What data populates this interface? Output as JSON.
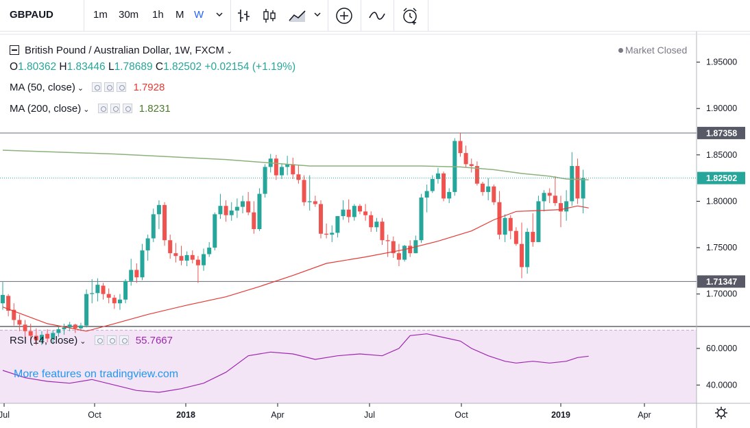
{
  "toolbar": {
    "symbol": "GBPAUD",
    "intervals": [
      "1m",
      "30m",
      "1h",
      "M",
      "W"
    ],
    "active_interval": "W",
    "colors": {
      "active": "#2962ff"
    }
  },
  "legend": {
    "title": "British Pound / Australian Dollar, 1W, FXCM",
    "market_status": "Market Closed",
    "ohlc": {
      "o_label": "O",
      "o": "1.80362",
      "h_label": "H",
      "h": "1.83446",
      "l_label": "L",
      "l": "1.78689",
      "c_label": "C",
      "c": "1.82502",
      "change": "+0.02154 (+1.19%)"
    },
    "ma50": {
      "label": "MA (50, close)",
      "value": "1.7928"
    },
    "ma200": {
      "label": "MA (200, close)",
      "value": "1.8231"
    },
    "rsi": {
      "label": "RSI (14, close)",
      "value": "55.7667"
    }
  },
  "watermark": "More features on tradingview.com",
  "colors": {
    "up": "#26a69a",
    "down": "#ef5350",
    "ma50": "#e53935",
    "ma200": "#8bb07b",
    "rsi": "#9c27b0",
    "rsi_band": "#f3e5f5"
  },
  "chart_data": [
    {
      "type": "candlestick",
      "title": "British Pound / Australian Dollar, 1W, FXCM",
      "ylim": [
        1.665,
        1.98
      ],
      "y_ticks": [
        "1.95000",
        "1.90000",
        "1.85000",
        "1.80000",
        "1.75000",
        "1.70000"
      ],
      "x_tick_labels": [
        "Jul",
        "Oct",
        "2018",
        "Apr",
        "Jul",
        "Oct",
        "2019",
        "Apr"
      ],
      "price_labels": [
        {
          "label": "1.87358",
          "value": 1.87358,
          "kind": "level"
        },
        {
          "label": "1.82502",
          "value": 1.82502,
          "kind": "last"
        },
        {
          "label": "1.71347",
          "value": 1.71347,
          "kind": "level"
        }
      ],
      "horizontal_levels": [
        1.87358,
        1.71347
      ],
      "candles": [
        {
          "o": 1.69,
          "h": 1.713,
          "l": 1.683,
          "c": 1.699
        },
        {
          "o": 1.698,
          "h": 1.7,
          "l": 1.676,
          "c": 1.682
        },
        {
          "o": 1.683,
          "h": 1.69,
          "l": 1.666,
          "c": 1.672
        },
        {
          "o": 1.672,
          "h": 1.678,
          "l": 1.66,
          "c": 1.667
        },
        {
          "o": 1.667,
          "h": 1.672,
          "l": 1.652,
          "c": 1.66
        },
        {
          "o": 1.66,
          "h": 1.668,
          "l": 1.65,
          "c": 1.655
        },
        {
          "o": 1.655,
          "h": 1.663,
          "l": 1.645,
          "c": 1.65
        },
        {
          "o": 1.65,
          "h": 1.66,
          "l": 1.645,
          "c": 1.656
        },
        {
          "o": 1.657,
          "h": 1.662,
          "l": 1.648,
          "c": 1.652
        },
        {
          "o": 1.652,
          "h": 1.661,
          "l": 1.646,
          "c": 1.658
        },
        {
          "o": 1.658,
          "h": 1.666,
          "l": 1.654,
          "c": 1.662
        },
        {
          "o": 1.662,
          "h": 1.668,
          "l": 1.656,
          "c": 1.664
        },
        {
          "o": 1.664,
          "h": 1.67,
          "l": 1.66,
          "c": 1.667
        },
        {
          "o": 1.667,
          "h": 1.668,
          "l": 1.658,
          "c": 1.663
        },
        {
          "o": 1.663,
          "h": 1.669,
          "l": 1.66,
          "c": 1.666
        },
        {
          "o": 1.666,
          "h": 1.705,
          "l": 1.664,
          "c": 1.7
        },
        {
          "o": 1.7,
          "h": 1.716,
          "l": 1.69,
          "c": 1.701
        },
        {
          "o": 1.701,
          "h": 1.717,
          "l": 1.692,
          "c": 1.71
        },
        {
          "o": 1.709,
          "h": 1.712,
          "l": 1.694,
          "c": 1.7
        },
        {
          "o": 1.7,
          "h": 1.706,
          "l": 1.69,
          "c": 1.696
        },
        {
          "o": 1.696,
          "h": 1.699,
          "l": 1.684,
          "c": 1.69
        },
        {
          "o": 1.69,
          "h": 1.7,
          "l": 1.683,
          "c": 1.694
        },
        {
          "o": 1.694,
          "h": 1.716,
          "l": 1.69,
          "c": 1.714
        },
        {
          "o": 1.714,
          "h": 1.738,
          "l": 1.709,
          "c": 1.726
        },
        {
          "o": 1.726,
          "h": 1.733,
          "l": 1.712,
          "c": 1.718
        },
        {
          "o": 1.718,
          "h": 1.754,
          "l": 1.715,
          "c": 1.747
        },
        {
          "o": 1.747,
          "h": 1.764,
          "l": 1.736,
          "c": 1.76
        },
        {
          "o": 1.76,
          "h": 1.792,
          "l": 1.756,
          "c": 1.786
        },
        {
          "o": 1.786,
          "h": 1.801,
          "l": 1.77,
          "c": 1.796
        },
        {
          "o": 1.796,
          "h": 1.799,
          "l": 1.752,
          "c": 1.758
        },
        {
          "o": 1.758,
          "h": 1.764,
          "l": 1.738,
          "c": 1.744
        },
        {
          "o": 1.744,
          "h": 1.755,
          "l": 1.734,
          "c": 1.741
        },
        {
          "o": 1.741,
          "h": 1.752,
          "l": 1.731,
          "c": 1.736
        },
        {
          "o": 1.736,
          "h": 1.746,
          "l": 1.73,
          "c": 1.742
        },
        {
          "o": 1.742,
          "h": 1.747,
          "l": 1.733,
          "c": 1.737
        },
        {
          "o": 1.737,
          "h": 1.741,
          "l": 1.712,
          "c": 1.731
        },
        {
          "o": 1.731,
          "h": 1.749,
          "l": 1.725,
          "c": 1.743
        },
        {
          "o": 1.743,
          "h": 1.756,
          "l": 1.74,
          "c": 1.75
        },
        {
          "o": 1.75,
          "h": 1.788,
          "l": 1.747,
          "c": 1.786
        },
        {
          "o": 1.786,
          "h": 1.808,
          "l": 1.781,
          "c": 1.795
        },
        {
          "o": 1.795,
          "h": 1.801,
          "l": 1.778,
          "c": 1.785
        },
        {
          "o": 1.785,
          "h": 1.799,
          "l": 1.779,
          "c": 1.79
        },
        {
          "o": 1.79,
          "h": 1.803,
          "l": 1.782,
          "c": 1.794
        },
        {
          "o": 1.794,
          "h": 1.806,
          "l": 1.787,
          "c": 1.8
        },
        {
          "o": 1.8,
          "h": 1.81,
          "l": 1.785,
          "c": 1.788
        },
        {
          "o": 1.788,
          "h": 1.8,
          "l": 1.765,
          "c": 1.77
        },
        {
          "o": 1.77,
          "h": 1.814,
          "l": 1.768,
          "c": 1.808
        },
        {
          "o": 1.808,
          "h": 1.84,
          "l": 1.804,
          "c": 1.837
        },
        {
          "o": 1.837,
          "h": 1.851,
          "l": 1.831,
          "c": 1.846
        },
        {
          "o": 1.846,
          "h": 1.85,
          "l": 1.823,
          "c": 1.828
        },
        {
          "o": 1.828,
          "h": 1.841,
          "l": 1.824,
          "c": 1.837
        },
        {
          "o": 1.837,
          "h": 1.849,
          "l": 1.828,
          "c": 1.84
        },
        {
          "o": 1.84,
          "h": 1.847,
          "l": 1.824,
          "c": 1.829
        },
        {
          "o": 1.829,
          "h": 1.839,
          "l": 1.819,
          "c": 1.823
        },
        {
          "o": 1.823,
          "h": 1.828,
          "l": 1.795,
          "c": 1.799
        },
        {
          "o": 1.799,
          "h": 1.828,
          "l": 1.79,
          "c": 1.8
        },
        {
          "o": 1.8,
          "h": 1.806,
          "l": 1.794,
          "c": 1.797
        },
        {
          "o": 1.797,
          "h": 1.801,
          "l": 1.76,
          "c": 1.765
        },
        {
          "o": 1.765,
          "h": 1.776,
          "l": 1.76,
          "c": 1.764
        },
        {
          "o": 1.764,
          "h": 1.774,
          "l": 1.756,
          "c": 1.766
        },
        {
          "o": 1.766,
          "h": 1.784,
          "l": 1.761,
          "c": 1.784
        },
        {
          "o": 1.784,
          "h": 1.801,
          "l": 1.78,
          "c": 1.791
        },
        {
          "o": 1.791,
          "h": 1.802,
          "l": 1.777,
          "c": 1.783
        },
        {
          "o": 1.783,
          "h": 1.797,
          "l": 1.779,
          "c": 1.795
        },
        {
          "o": 1.795,
          "h": 1.797,
          "l": 1.786,
          "c": 1.789
        },
        {
          "o": 1.789,
          "h": 1.797,
          "l": 1.779,
          "c": 1.785
        },
        {
          "o": 1.785,
          "h": 1.789,
          "l": 1.767,
          "c": 1.772
        },
        {
          "o": 1.772,
          "h": 1.782,
          "l": 1.767,
          "c": 1.778
        },
        {
          "o": 1.778,
          "h": 1.782,
          "l": 1.753,
          "c": 1.758
        },
        {
          "o": 1.758,
          "h": 1.764,
          "l": 1.74,
          "c": 1.757
        },
        {
          "o": 1.757,
          "h": 1.762,
          "l": 1.739,
          "c": 1.744
        },
        {
          "o": 1.744,
          "h": 1.754,
          "l": 1.73,
          "c": 1.737
        },
        {
          "o": 1.737,
          "h": 1.753,
          "l": 1.735,
          "c": 1.752
        },
        {
          "o": 1.752,
          "h": 1.758,
          "l": 1.74,
          "c": 1.744
        },
        {
          "o": 1.744,
          "h": 1.763,
          "l": 1.744,
          "c": 1.758
        },
        {
          "o": 1.758,
          "h": 1.808,
          "l": 1.755,
          "c": 1.804
        },
        {
          "o": 1.804,
          "h": 1.818,
          "l": 1.788,
          "c": 1.811
        },
        {
          "o": 1.811,
          "h": 1.828,
          "l": 1.809,
          "c": 1.824
        },
        {
          "o": 1.824,
          "h": 1.836,
          "l": 1.819,
          "c": 1.83
        },
        {
          "o": 1.83,
          "h": 1.832,
          "l": 1.8,
          "c": 1.803
        },
        {
          "o": 1.803,
          "h": 1.814,
          "l": 1.798,
          "c": 1.81
        },
        {
          "o": 1.81,
          "h": 1.868,
          "l": 1.806,
          "c": 1.865
        },
        {
          "o": 1.865,
          "h": 1.874,
          "l": 1.848,
          "c": 1.852
        },
        {
          "o": 1.852,
          "h": 1.86,
          "l": 1.836,
          "c": 1.84
        },
        {
          "o": 1.84,
          "h": 1.846,
          "l": 1.831,
          "c": 1.838
        },
        {
          "o": 1.838,
          "h": 1.843,
          "l": 1.817,
          "c": 1.819
        },
        {
          "o": 1.819,
          "h": 1.821,
          "l": 1.806,
          "c": 1.81
        },
        {
          "o": 1.81,
          "h": 1.825,
          "l": 1.801,
          "c": 1.816
        },
        {
          "o": 1.816,
          "h": 1.818,
          "l": 1.796,
          "c": 1.799
        },
        {
          "o": 1.799,
          "h": 1.811,
          "l": 1.759,
          "c": 1.764
        },
        {
          "o": 1.764,
          "h": 1.786,
          "l": 1.756,
          "c": 1.782
        },
        {
          "o": 1.782,
          "h": 1.785,
          "l": 1.759,
          "c": 1.768
        },
        {
          "o": 1.768,
          "h": 1.772,
          "l": 1.752,
          "c": 1.754
        },
        {
          "o": 1.754,
          "h": 1.777,
          "l": 1.717,
          "c": 1.729
        },
        {
          "o": 1.729,
          "h": 1.771,
          "l": 1.722,
          "c": 1.767
        },
        {
          "o": 1.767,
          "h": 1.787,
          "l": 1.751,
          "c": 1.756
        },
        {
          "o": 1.756,
          "h": 1.806,
          "l": 1.756,
          "c": 1.8
        },
        {
          "o": 1.8,
          "h": 1.812,
          "l": 1.789,
          "c": 1.809
        },
        {
          "o": 1.809,
          "h": 1.814,
          "l": 1.798,
          "c": 1.806
        },
        {
          "o": 1.806,
          "h": 1.827,
          "l": 1.795,
          "c": 1.798
        },
        {
          "o": 1.798,
          "h": 1.806,
          "l": 1.772,
          "c": 1.789
        },
        {
          "o": 1.789,
          "h": 1.812,
          "l": 1.779,
          "c": 1.8
        },
        {
          "o": 1.8,
          "h": 1.853,
          "l": 1.795,
          "c": 1.838
        },
        {
          "o": 1.838,
          "h": 1.846,
          "l": 1.797,
          "c": 1.803
        },
        {
          "o": 1.803,
          "h": 1.834,
          "l": 1.787,
          "c": 1.825
        }
      ],
      "ma50": [
        [
          0,
          1.686
        ],
        [
          8,
          1.668
        ],
        [
          15,
          1.66
        ],
        [
          20,
          1.668
        ],
        [
          26,
          1.678
        ],
        [
          33,
          1.688
        ],
        [
          40,
          1.697
        ],
        [
          46,
          1.708
        ],
        [
          52,
          1.72
        ],
        [
          58,
          1.733
        ],
        [
          65,
          1.74
        ],
        [
          72,
          1.748
        ],
        [
          78,
          1.757
        ],
        [
          84,
          1.768
        ],
        [
          88,
          1.78
        ],
        [
          92,
          1.789
        ],
        [
          96,
          1.79
        ],
        [
          100,
          1.791
        ],
        [
          103,
          1.795
        ],
        [
          105,
          1.7928
        ]
      ],
      "ma200": [
        [
          0,
          1.855
        ],
        [
          20,
          1.851
        ],
        [
          40,
          1.845
        ],
        [
          55,
          1.838
        ],
        [
          65,
          1.838
        ],
        [
          75,
          1.838
        ],
        [
          82,
          1.837
        ],
        [
          88,
          1.834
        ],
        [
          93,
          1.83
        ],
        [
          98,
          1.827
        ],
        [
          101,
          1.824
        ],
        [
          105,
          1.8231
        ]
      ]
    },
    {
      "type": "line",
      "title": "RSI (14, close)",
      "ylim": [
        30,
        72
      ],
      "y_ticks": [
        "60.0000",
        "40.0000"
      ],
      "bands": [
        70,
        30
      ],
      "series": [
        {
          "name": "RSI (14, close)",
          "values": [
            [
              0,
              48
            ],
            [
              4,
              44
            ],
            [
              8,
              42
            ],
            [
              12,
              41
            ],
            [
              16,
              43
            ],
            [
              20,
              40
            ],
            [
              24,
              37
            ],
            [
              28,
              36
            ],
            [
              32,
              38
            ],
            [
              36,
              41
            ],
            [
              40,
              47
            ],
            [
              44,
              56
            ],
            [
              48,
              58
            ],
            [
              52,
              57
            ],
            [
              56,
              54
            ],
            [
              60,
              56
            ],
            [
              64,
              57
            ],
            [
              68,
              56
            ],
            [
              71,
              60
            ],
            [
              73,
              67
            ],
            [
              76,
              68
            ],
            [
              79,
              66
            ],
            [
              82,
              64
            ],
            [
              84,
              60
            ],
            [
              87,
              56
            ],
            [
              90,
              53
            ],
            [
              92,
              52
            ],
            [
              95,
              53
            ],
            [
              98,
              52
            ],
            [
              101,
              53
            ],
            [
              103,
              55
            ],
            [
              105,
              55.7667
            ]
          ]
        }
      ]
    }
  ],
  "x_axis_labels": [
    "Jul",
    "Oct",
    "2018",
    "Apr",
    "Jul",
    "Oct",
    "2019",
    "Apr"
  ]
}
